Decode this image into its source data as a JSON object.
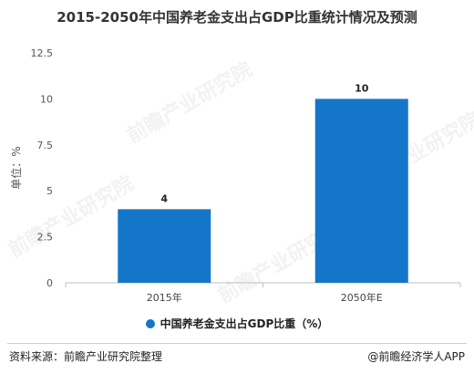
{
  "title": "2015-2050年中国养老金支出占GDP比重统计情况及预测",
  "ylabel_text": "单位：%",
  "legend_label": "中国养老金支出占GDP比重（%）",
  "source_text": "资料来源：前瞻产业研究院整理",
  "credit_text": "@前瞻经济学人APP",
  "watermark_text": "前瞻产业研究院",
  "colors": {
    "bar": "#1476c8",
    "axis": "#bfbfbf",
    "text": "#333333"
  },
  "chart_data": {
    "type": "bar",
    "categories": [
      "2015年",
      "2050年E"
    ],
    "series": [
      {
        "name": "中国养老金支出占GDP比重（%）",
        "values": [
          4,
          10
        ]
      }
    ],
    "data_labels": [
      "4",
      "10"
    ],
    "ylabel": "单位：%",
    "ylim": [
      0,
      12.5
    ],
    "yticks": [
      0,
      2.5,
      5,
      7.5,
      10,
      12.5
    ],
    "ytick_labels": [
      "0",
      "2.5",
      "5",
      "7.5",
      "10",
      "12.5"
    ],
    "grid": false,
    "legend": "bottom"
  }
}
